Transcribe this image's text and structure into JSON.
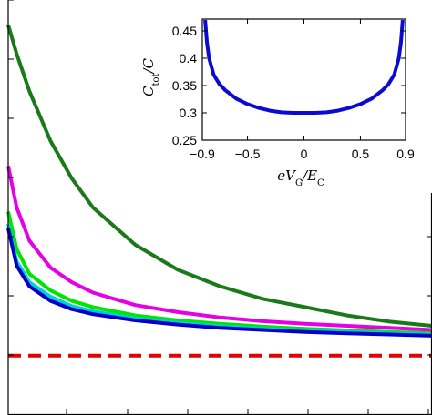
{
  "chart_data": [
    {
      "type": "line",
      "xlim": [
        0,
        1
      ],
      "ylim": [
        0,
        1
      ],
      "grid": false,
      "legend": "none",
      "x_ticks": [],
      "y_ticks": [],
      "series": [
        {
          "color": "#1a7a1a",
          "x": [
            0.0,
            0.02,
            0.05,
            0.1,
            0.15,
            0.2,
            0.3,
            0.4,
            0.5,
            0.6,
            0.7,
            0.8,
            0.9,
            1.0
          ],
          "y": [
            0.94,
            0.87,
            0.78,
            0.66,
            0.57,
            0.5,
            0.41,
            0.35,
            0.31,
            0.28,
            0.26,
            0.24,
            0.225,
            0.215
          ]
        },
        {
          "color": "#e600e6",
          "x": [
            0.0,
            0.02,
            0.05,
            0.1,
            0.15,
            0.2,
            0.3,
            0.4,
            0.5,
            0.6,
            0.7,
            0.8,
            0.9,
            1.0
          ],
          "y": [
            0.6,
            0.5,
            0.42,
            0.355,
            0.32,
            0.295,
            0.265,
            0.248,
            0.235,
            0.226,
            0.22,
            0.215,
            0.21,
            0.205
          ]
        },
        {
          "color": "#00e600",
          "x": [
            0.0,
            0.02,
            0.05,
            0.1,
            0.15,
            0.2,
            0.3,
            0.4,
            0.5,
            0.6,
            0.7,
            0.8,
            0.9,
            1.0
          ],
          "y": [
            0.49,
            0.4,
            0.34,
            0.3,
            0.275,
            0.26,
            0.24,
            0.228,
            0.22,
            0.213,
            0.208,
            0.204,
            0.2,
            0.197
          ]
        },
        {
          "color": "#00d0d0",
          "x": [
            0.0,
            0.02,
            0.05,
            0.1,
            0.15,
            0.2,
            0.3,
            0.4,
            0.5,
            0.6,
            0.7,
            0.8,
            0.9,
            1.0
          ],
          "y": [
            0.46,
            0.37,
            0.32,
            0.285,
            0.262,
            0.25,
            0.233,
            0.222,
            0.214,
            0.208,
            0.204,
            0.2,
            0.197,
            0.194
          ]
        },
        {
          "color": "#0000cc",
          "x": [
            0.0,
            0.02,
            0.05,
            0.1,
            0.15,
            0.2,
            0.3,
            0.4,
            0.5,
            0.6,
            0.7,
            0.8,
            0.9,
            1.0
          ],
          "y": [
            0.45,
            0.36,
            0.31,
            0.275,
            0.255,
            0.243,
            0.228,
            0.218,
            0.21,
            0.205,
            0.2,
            0.197,
            0.194,
            0.191
          ]
        },
        {
          "color": "#e60000",
          "dashed": true,
          "x": [
            0.0,
            1.0
          ],
          "y": [
            0.143,
            0.143
          ]
        }
      ]
    },
    {
      "type": "line",
      "xlim": [
        -0.9,
        0.9
      ],
      "ylim": [
        0.25,
        0.47
      ],
      "grid": false,
      "legend": "none",
      "xlabel": {
        "main": "eV",
        "sub": "G",
        "tail": "/E",
        "tail_sub": "C"
      },
      "ylabel": {
        "main": "C",
        "sub": "tot",
        "tail": "/C"
      },
      "x_ticks": [
        "−0.9",
        "−0.5",
        "0",
        "0.5",
        "0.9"
      ],
      "x_tick_values": [
        -0.9,
        -0.5,
        0,
        0.5,
        0.9
      ],
      "y_ticks": [
        "0.25",
        "0.3",
        "0.35",
        "0.4",
        "0.45"
      ],
      "y_tick_values": [
        0.25,
        0.3,
        0.35,
        0.4,
        0.45
      ],
      "series": [
        {
          "color": "#0a0ad0",
          "x": [
            -0.875,
            -0.86,
            -0.84,
            -0.8,
            -0.75,
            -0.7,
            -0.6,
            -0.5,
            -0.4,
            -0.3,
            -0.2,
            -0.1,
            0.0,
            0.1,
            0.2,
            0.3,
            0.4,
            0.5,
            0.6,
            0.7,
            0.75,
            0.8,
            0.84,
            0.86,
            0.875
          ],
          "y": [
            0.47,
            0.43,
            0.4,
            0.37,
            0.353,
            0.342,
            0.326,
            0.316,
            0.309,
            0.304,
            0.301,
            0.3,
            0.3,
            0.3,
            0.301,
            0.304,
            0.309,
            0.316,
            0.326,
            0.342,
            0.353,
            0.37,
            0.4,
            0.43,
            0.47
          ]
        }
      ]
    }
  ]
}
